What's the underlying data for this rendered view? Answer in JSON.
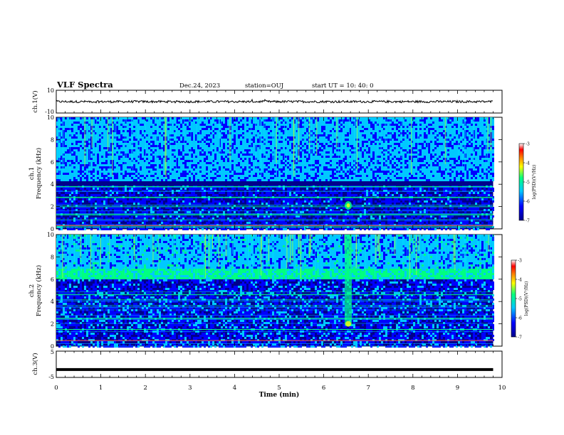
{
  "header": {
    "title": "VLF Spectra",
    "date": "Dec.24, 2023",
    "station": "station=OUJ",
    "start": "start  UT  =   10: 40: 0"
  },
  "colors": {
    "background": "#000066",
    "spectrum_low": "#00008b",
    "spectrum_mid": "#00b4ff",
    "spectrum_high": "#00ff80",
    "colormap": [
      "#00008b",
      "#0000ff",
      "#00c8ff",
      "#00ff80",
      "#ffff00",
      "#ff8000",
      "#ff0000",
      "#ffffff"
    ]
  },
  "chart_data": [
    {
      "type": "line",
      "title": "",
      "ylabel": "ch.1(V)",
      "xlabel": "",
      "xlim": [
        0,
        10
      ],
      "ylim": [
        -10,
        10
      ],
      "y_ticks": [
        "10",
        "-10"
      ],
      "series": [
        {
          "values_note": "",
          "level": 0,
          "noise_amplitude": 1.0,
          "x_end": 9.8
        }
      ]
    },
    {
      "type": "heatmap",
      "title": "",
      "ylabel": "ch.1\nFrequency (kHz)",
      "xlim": [
        0,
        9.8
      ],
      "ylim": [
        0,
        10
      ],
      "y_ticks": [
        "0",
        "2",
        "4",
        "6",
        "8",
        "10"
      ],
      "features": {
        "dense_emission_band_khz": [
          4.3,
          10
        ],
        "dark_band_khz": [
          3.9,
          4.3
        ],
        "weak_band_khz": [
          0,
          3.9
        ],
        "burst_time_min": 6.55,
        "burst_freq_khz": 2.1,
        "bright_lines_khz": [
          3.8,
          2.8,
          1.3,
          0.3
        ]
      },
      "colorbar": {
        "label": "log(PSD)(V²/Hz)",
        "ticks": [
          "-3",
          "-4",
          "-5",
          "-6",
          "-7"
        ],
        "range": [
          -7,
          -3
        ]
      }
    },
    {
      "type": "heatmap",
      "title": "",
      "ylabel": "ch.2\nFrequency (kHz)",
      "xlim": [
        0,
        9.8
      ],
      "ylim": [
        0,
        10
      ],
      "y_ticks": [
        "0",
        "2",
        "4",
        "6",
        "8",
        "10"
      ],
      "features": {
        "bright_band_khz": [
          6.0,
          7.0
        ],
        "burst_time_min": 6.55,
        "burst_freq_range_khz": [
          1.8,
          10
        ],
        "bright_lines_khz": [
          2.5,
          1.5,
          0.5
        ]
      },
      "colorbar": {
        "label": "log(PSD)(V²/Hz)",
        "ticks": [
          "-3",
          "-4",
          "-5",
          "-6",
          "-7"
        ],
        "range": [
          -7,
          -3
        ]
      }
    },
    {
      "type": "line",
      "title": "",
      "ylabel": "ch.3(V)",
      "xlabel": "Time (min)",
      "xlim": [
        0,
        10
      ],
      "ylim": [
        -5,
        5
      ],
      "y_ticks": [
        "5",
        "0",
        "-5"
      ],
      "x_ticks": [
        "0",
        "1",
        "2",
        "3",
        "4",
        "5",
        "6",
        "7",
        "8",
        "9",
        "10"
      ],
      "series": [
        {
          "level": -2.0,
          "x_end": 9.8
        }
      ]
    }
  ]
}
